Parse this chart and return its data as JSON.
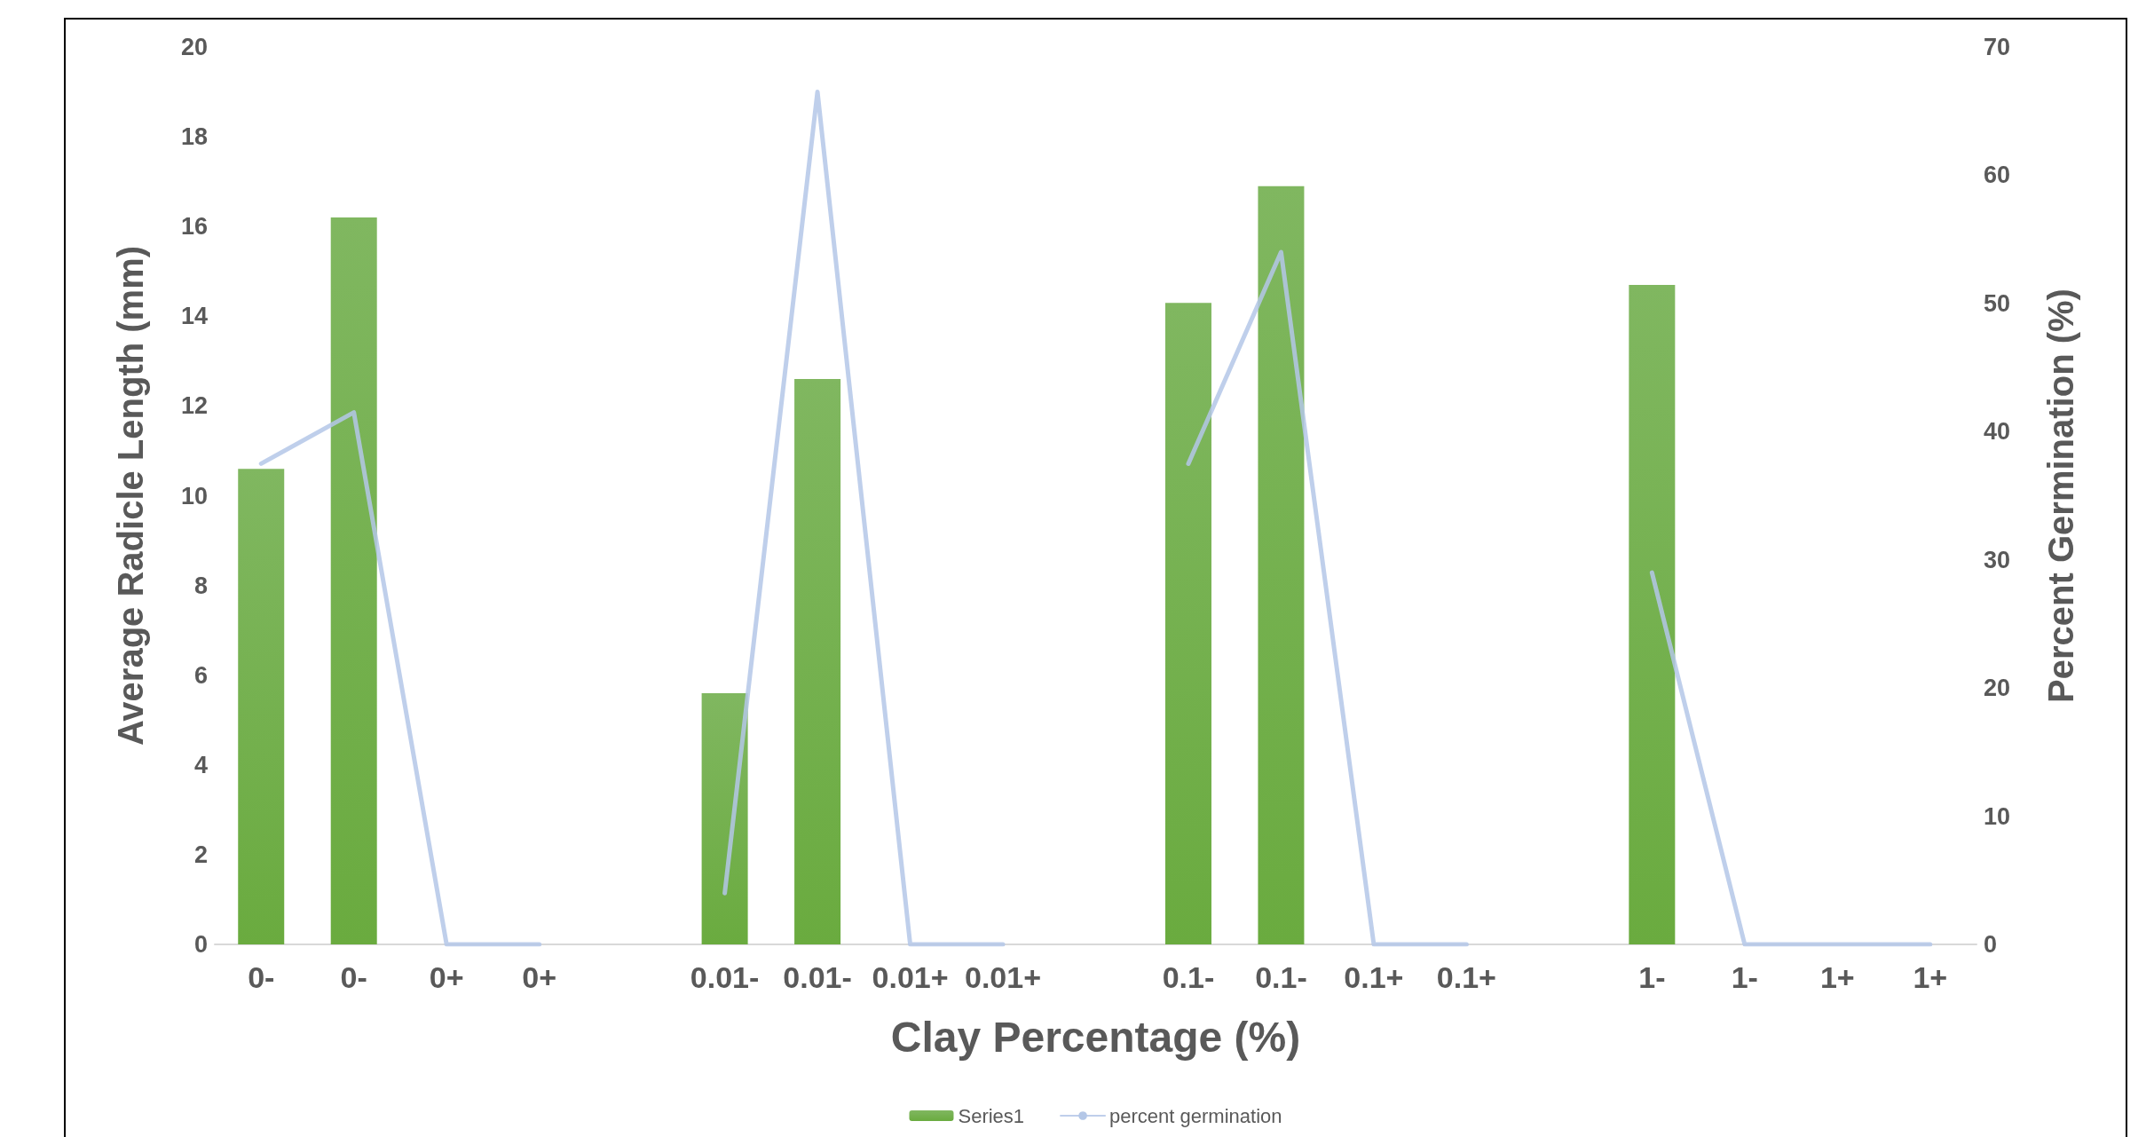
{
  "chart_data": {
    "type": "bar",
    "xlabel": "Clay Percentage (%)",
    "ylabel": "Average Radicle Length (mm)",
    "y2label": "Percent Germination (%)",
    "categories": [
      "0-",
      "0-",
      "0+",
      "0+",
      null,
      "0.01-",
      "0.01-",
      "0.01+",
      "0.01+",
      null,
      "0.1-",
      "0.1-",
      "0.1+",
      "0.1+",
      null,
      "1-",
      "1-",
      "1+",
      "1+"
    ],
    "series": [
      {
        "name": "Series1",
        "color": "#6aab3f",
        "values": [
          10.6,
          16.2,
          0,
          0,
          null,
          5.6,
          12.6,
          0,
          0,
          null,
          14.3,
          16.9,
          0,
          0,
          null,
          14.7,
          0,
          0,
          0
        ]
      },
      {
        "name": "percent germination",
        "type": "line",
        "axis": "y2",
        "color": "#b4c7e7",
        "values": [
          37.5,
          41.5,
          0,
          0,
          null,
          4,
          66.5,
          0,
          0,
          null,
          37.5,
          54,
          0,
          0,
          null,
          29,
          0,
          0,
          0
        ]
      }
    ],
    "ylim": [
      0,
      20
    ],
    "yticks": [
      0,
      2,
      4,
      6,
      8,
      10,
      12,
      14,
      16,
      18,
      20
    ],
    "y2lim": [
      0,
      70
    ],
    "y2ticks": [
      0,
      10,
      20,
      30,
      40,
      50,
      60,
      70
    ],
    "grid": false,
    "legend": "bottom",
    "marker": "none",
    "line_style": "solid"
  }
}
